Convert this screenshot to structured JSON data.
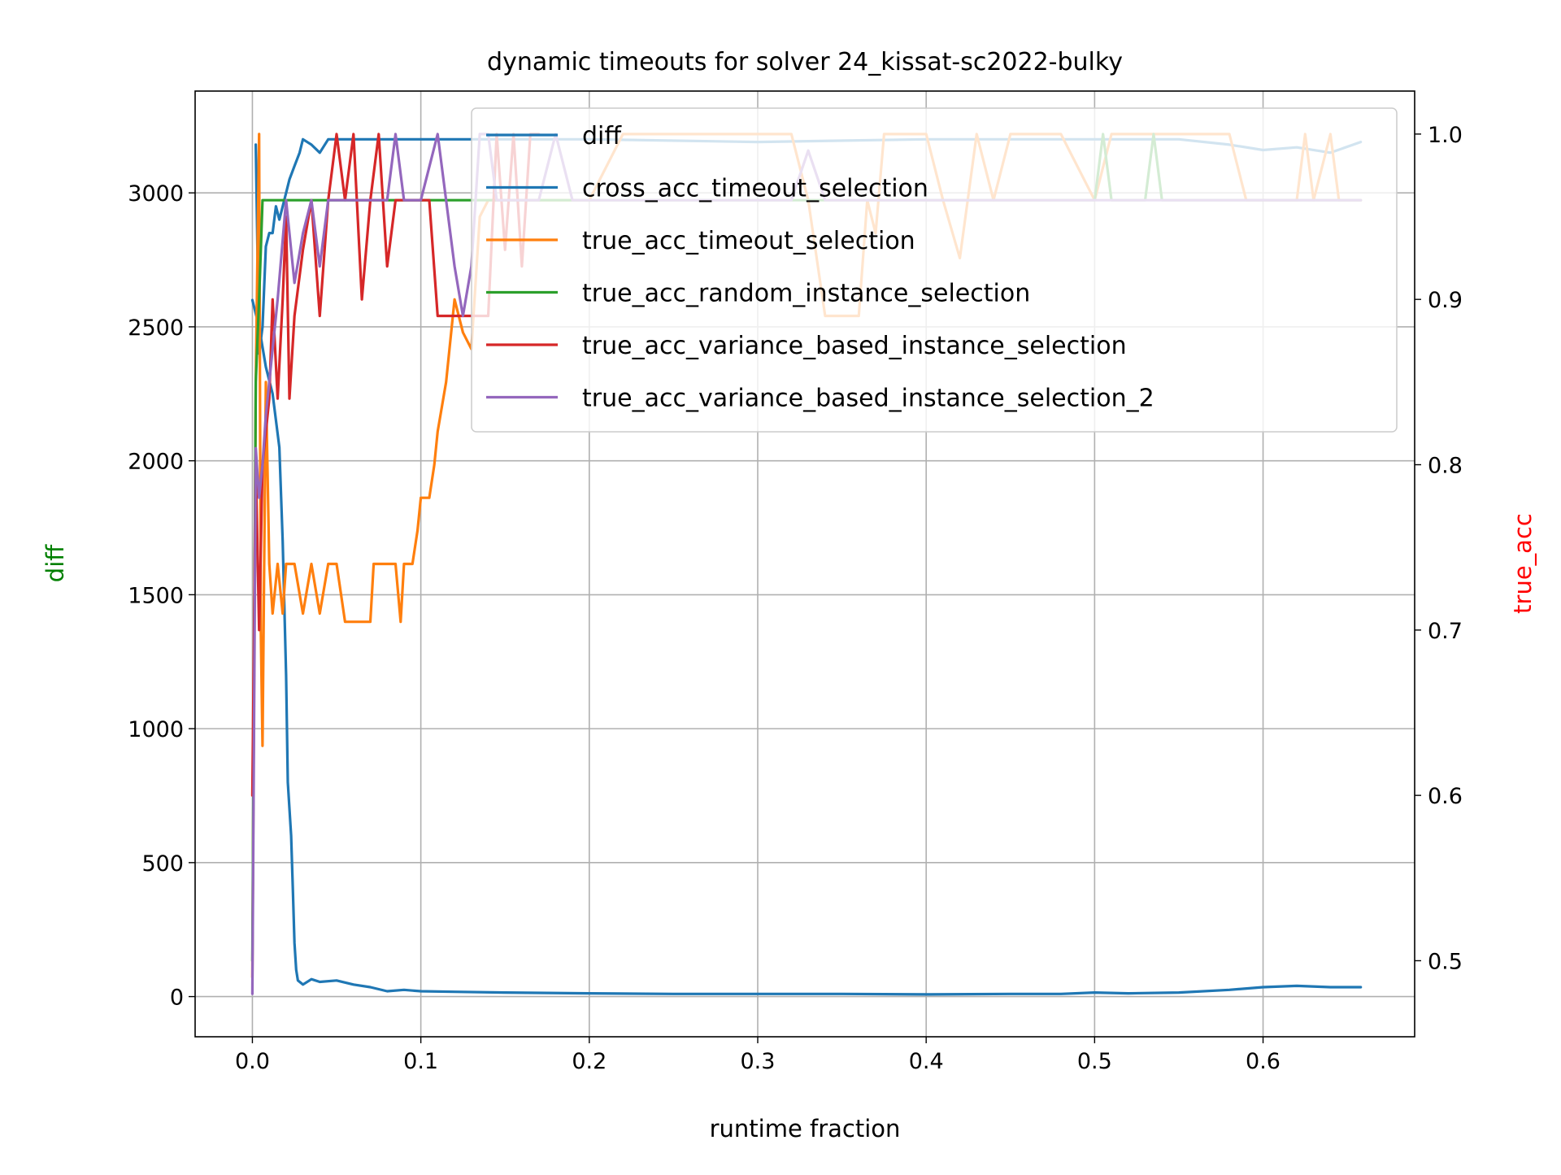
{
  "chart_data": {
    "type": "line",
    "title": "dynamic timeouts for solver 24_kissat-sc2022-bulky",
    "xlabel": "runtime fraction",
    "ylabel_left": "diff",
    "ylabel_right": "true_acc",
    "xlim": [
      -0.034,
      0.69
    ],
    "ylim_left": [
      -150,
      3380
    ],
    "ylim_right": [
      0.454,
      1.026
    ],
    "x_ticks": [
      0.0,
      0.1,
      0.2,
      0.3,
      0.4,
      0.5,
      0.6
    ],
    "x_tick_labels": [
      "0.0",
      "0.1",
      "0.2",
      "0.3",
      "0.4",
      "0.5",
      "0.6"
    ],
    "y_left_ticks": [
      0,
      500,
      1000,
      1500,
      2000,
      2500,
      3000
    ],
    "y_left_tick_labels": [
      "0",
      "500",
      "1000",
      "1500",
      "2000",
      "2500",
      "3000"
    ],
    "y_right_ticks": [
      0.5,
      0.6,
      0.7,
      0.8,
      0.9,
      1.0
    ],
    "y_right_tick_labels": [
      "0.5",
      "0.6",
      "0.7",
      "0.8",
      "0.9",
      "1.0"
    ],
    "grid": true,
    "legend_position": "top-right",
    "colors": {
      "diff": "#1f77b4",
      "true_acc_timeout_selection": "#ff7f0e",
      "true_acc_random_instance_selection": "#2ca02c",
      "true_acc_variance_based_instance_selection": "#d62728",
      "true_acc_variance_based_instance_selection_2": "#9467bd",
      "ylabel_left": "#008000",
      "ylabel_right": "#ff0000"
    },
    "legend": [
      "diff",
      "cross_acc_timeout_selection",
      "true_acc_timeout_selection",
      "true_acc_random_instance_selection",
      "true_acc_variance_based_instance_selection",
      "true_acc_variance_based_instance_selection_2"
    ],
    "series": [
      {
        "name": "diff",
        "axis": "left",
        "color": "#1f77b4",
        "points": [
          [
            0.0,
            2600
          ],
          [
            0.004,
            2500
          ],
          [
            0.008,
            2350
          ],
          [
            0.012,
            2250
          ],
          [
            0.016,
            2050
          ],
          [
            0.018,
            1700
          ],
          [
            0.02,
            1200
          ],
          [
            0.021,
            800
          ],
          [
            0.023,
            600
          ],
          [
            0.024,
            400
          ],
          [
            0.025,
            200
          ],
          [
            0.026,
            100
          ],
          [
            0.027,
            60
          ],
          [
            0.03,
            45
          ],
          [
            0.035,
            65
          ],
          [
            0.04,
            55
          ],
          [
            0.05,
            60
          ],
          [
            0.06,
            45
          ],
          [
            0.07,
            35
          ],
          [
            0.08,
            20
          ],
          [
            0.09,
            25
          ],
          [
            0.1,
            20
          ],
          [
            0.12,
            18
          ],
          [
            0.15,
            15
          ],
          [
            0.2,
            12
          ],
          [
            0.25,
            10
          ],
          [
            0.3,
            10
          ],
          [
            0.35,
            10
          ],
          [
            0.4,
            8
          ],
          [
            0.45,
            10
          ],
          [
            0.48,
            10
          ],
          [
            0.5,
            15
          ],
          [
            0.52,
            12
          ],
          [
            0.55,
            15
          ],
          [
            0.58,
            25
          ],
          [
            0.6,
            35
          ],
          [
            0.62,
            40
          ],
          [
            0.64,
            35
          ],
          [
            0.658,
            35
          ]
        ]
      },
      {
        "name": "cross_acc_timeout_selection",
        "axis": "left",
        "color": "#1f77b4",
        "points": [
          [
            0.002,
            3180
          ],
          [
            0.004,
            2400
          ],
          [
            0.006,
            2500
          ],
          [
            0.008,
            2800
          ],
          [
            0.01,
            2850
          ],
          [
            0.012,
            2850
          ],
          [
            0.014,
            2950
          ],
          [
            0.016,
            2900
          ],
          [
            0.02,
            3000
          ],
          [
            0.022,
            3050
          ],
          [
            0.025,
            3100
          ],
          [
            0.028,
            3150
          ],
          [
            0.03,
            3200
          ],
          [
            0.035,
            3180
          ],
          [
            0.04,
            3150
          ],
          [
            0.045,
            3200
          ],
          [
            0.05,
            3200
          ],
          [
            0.1,
            3200
          ],
          [
            0.2,
            3200
          ],
          [
            0.3,
            3190
          ],
          [
            0.4,
            3200
          ],
          [
            0.45,
            3200
          ],
          [
            0.5,
            3200
          ],
          [
            0.55,
            3200
          ],
          [
            0.58,
            3180
          ],
          [
            0.6,
            3160
          ],
          [
            0.62,
            3170
          ],
          [
            0.64,
            3150
          ],
          [
            0.658,
            3190
          ]
        ]
      },
      {
        "name": "true_acc_timeout_selection",
        "axis": "right",
        "color": "#ff7f0e",
        "points": [
          [
            0.0,
            0.49
          ],
          [
            0.002,
            0.85
          ],
          [
            0.004,
            1.0
          ],
          [
            0.005,
            0.7
          ],
          [
            0.006,
            0.63
          ],
          [
            0.008,
            0.85
          ],
          [
            0.01,
            0.74
          ],
          [
            0.012,
            0.71
          ],
          [
            0.015,
            0.74
          ],
          [
            0.018,
            0.71
          ],
          [
            0.02,
            0.74
          ],
          [
            0.025,
            0.74
          ],
          [
            0.03,
            0.71
          ],
          [
            0.035,
            0.74
          ],
          [
            0.04,
            0.71
          ],
          [
            0.045,
            0.74
          ],
          [
            0.05,
            0.74
          ],
          [
            0.055,
            0.705
          ],
          [
            0.07,
            0.705
          ],
          [
            0.072,
            0.74
          ],
          [
            0.085,
            0.74
          ],
          [
            0.088,
            0.705
          ],
          [
            0.09,
            0.74
          ],
          [
            0.095,
            0.74
          ],
          [
            0.098,
            0.76
          ],
          [
            0.1,
            0.78
          ],
          [
            0.105,
            0.78
          ],
          [
            0.108,
            0.8
          ],
          [
            0.11,
            0.82
          ],
          [
            0.115,
            0.85
          ],
          [
            0.12,
            0.9
          ],
          [
            0.125,
            0.88
          ],
          [
            0.13,
            0.87
          ],
          [
            0.135,
            0.95
          ],
          [
            0.14,
            0.96
          ],
          [
            0.16,
            0.96
          ],
          [
            0.2,
            0.96
          ],
          [
            0.22,
            1.0
          ],
          [
            0.24,
            1.0
          ],
          [
            0.3,
            1.0
          ],
          [
            0.32,
            1.0
          ],
          [
            0.33,
            0.96
          ],
          [
            0.34,
            0.89
          ],
          [
            0.36,
            0.89
          ],
          [
            0.365,
            0.96
          ],
          [
            0.37,
            0.94
          ],
          [
            0.375,
            1.0
          ],
          [
            0.4,
            1.0
          ],
          [
            0.41,
            0.96
          ],
          [
            0.42,
            0.925
          ],
          [
            0.43,
            1.0
          ],
          [
            0.44,
            0.96
          ],
          [
            0.45,
            1.0
          ],
          [
            0.48,
            1.0
          ],
          [
            0.5,
            0.96
          ],
          [
            0.51,
            1.0
          ],
          [
            0.58,
            1.0
          ],
          [
            0.59,
            0.96
          ],
          [
            0.62,
            0.96
          ],
          [
            0.625,
            1.0
          ],
          [
            0.63,
            0.96
          ],
          [
            0.64,
            1.0
          ],
          [
            0.645,
            0.96
          ],
          [
            0.658,
            0.96
          ]
        ]
      },
      {
        "name": "true_acc_random_instance_selection",
        "axis": "right",
        "color": "#2ca02c",
        "points": [
          [
            0.0,
            0.5
          ],
          [
            0.002,
            0.85
          ],
          [
            0.004,
            0.9
          ],
          [
            0.006,
            0.96
          ],
          [
            0.5,
            0.96
          ],
          [
            0.505,
            1.0
          ],
          [
            0.51,
            0.96
          ],
          [
            0.53,
            0.96
          ],
          [
            0.535,
            1.0
          ],
          [
            0.54,
            0.96
          ],
          [
            0.658,
            0.96
          ]
        ]
      },
      {
        "name": "true_acc_variance_based_instance_selection",
        "axis": "right",
        "color": "#d62728",
        "points": [
          [
            0.0,
            0.6
          ],
          [
            0.002,
            0.8
          ],
          [
            0.004,
            0.7
          ],
          [
            0.006,
            0.8
          ],
          [
            0.008,
            0.82
          ],
          [
            0.01,
            0.84
          ],
          [
            0.012,
            0.9
          ],
          [
            0.015,
            0.84
          ],
          [
            0.018,
            0.9
          ],
          [
            0.02,
            0.95
          ],
          [
            0.022,
            0.84
          ],
          [
            0.025,
            0.89
          ],
          [
            0.03,
            0.93
          ],
          [
            0.035,
            0.96
          ],
          [
            0.04,
            0.89
          ],
          [
            0.045,
            0.96
          ],
          [
            0.05,
            1.0
          ],
          [
            0.055,
            0.96
          ],
          [
            0.06,
            1.0
          ],
          [
            0.065,
            0.9
          ],
          [
            0.07,
            0.96
          ],
          [
            0.075,
            1.0
          ],
          [
            0.08,
            0.92
          ],
          [
            0.085,
            0.96
          ],
          [
            0.09,
            0.96
          ],
          [
            0.1,
            0.96
          ],
          [
            0.105,
            0.96
          ],
          [
            0.11,
            0.89
          ],
          [
            0.13,
            0.89
          ],
          [
            0.14,
            0.89
          ],
          [
            0.145,
            1.0
          ],
          [
            0.15,
            0.93
          ],
          [
            0.155,
            1.0
          ],
          [
            0.16,
            0.92
          ],
          [
            0.165,
            1.0
          ],
          [
            0.17,
            1.0
          ]
        ]
      },
      {
        "name": "true_acc_variance_based_instance_selection_2",
        "axis": "right",
        "color": "#9467bd",
        "points": [
          [
            0.0,
            0.48
          ],
          [
            0.002,
            0.81
          ],
          [
            0.004,
            0.78
          ],
          [
            0.006,
            0.8
          ],
          [
            0.008,
            0.83
          ],
          [
            0.01,
            0.85
          ],
          [
            0.015,
            0.9
          ],
          [
            0.02,
            0.96
          ],
          [
            0.025,
            0.91
          ],
          [
            0.03,
            0.94
          ],
          [
            0.035,
            0.96
          ],
          [
            0.04,
            0.92
          ],
          [
            0.045,
            0.96
          ],
          [
            0.05,
            0.96
          ],
          [
            0.08,
            0.96
          ],
          [
            0.085,
            1.0
          ],
          [
            0.09,
            0.96
          ],
          [
            0.1,
            0.96
          ],
          [
            0.11,
            1.0
          ],
          [
            0.115,
            0.96
          ],
          [
            0.12,
            0.92
          ],
          [
            0.125,
            0.89
          ],
          [
            0.13,
            0.92
          ],
          [
            0.135,
            1.0
          ],
          [
            0.14,
            1.0
          ],
          [
            0.145,
            0.96
          ],
          [
            0.15,
            0.96
          ],
          [
            0.16,
            0.96
          ],
          [
            0.17,
            0.96
          ],
          [
            0.18,
            1.0
          ],
          [
            0.19,
            0.96
          ],
          [
            0.2,
            0.96
          ],
          [
            0.3,
            0.96
          ],
          [
            0.32,
            0.96
          ],
          [
            0.33,
            0.99
          ],
          [
            0.34,
            0.96
          ],
          [
            0.5,
            0.96
          ],
          [
            0.658,
            0.96
          ]
        ]
      }
    ]
  }
}
